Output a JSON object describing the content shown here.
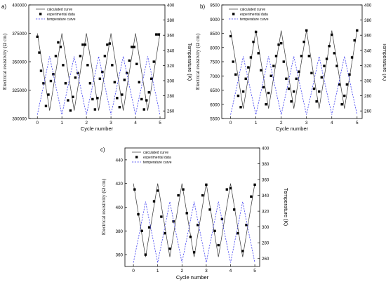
{
  "panels": [
    {
      "panel_label": "a)",
      "x_axis_label": "Cycle number",
      "y_left_label": "Electrical resistivity (Ω cm)",
      "y_right_label": "Temperature (K)",
      "legend": [
        "calculated curve",
        "experimental data",
        "temperature curve"
      ]
    },
    {
      "panel_label": "b)",
      "x_axis_label": "Cycle number",
      "y_left_label": "Electrical resistivity (Ω cm)",
      "y_right_label": "Temperature (K)",
      "legend": [
        "calculated curve",
        "experimental data",
        "temperature curve"
      ]
    },
    {
      "panel_label": "c)",
      "x_axis_label": "Cycle number",
      "y_left_label": "Electrical resistivity (Ω cm)",
      "y_right_label": "Temperature (K)",
      "legend": [
        "calculated curve",
        "experimental data",
        "temperature curve"
      ]
    }
  ],
  "chart_data": [
    {
      "type": "line",
      "title": "",
      "xlabel": "Cycle number",
      "ylabel": "Electrical resistivity (Ω cm)",
      "y2label": "Temperature (K)",
      "xlim": [
        -0.35,
        5.2
      ],
      "ylim": [
        300000,
        400000
      ],
      "y2lim": [
        250,
        400
      ],
      "xticks": [
        0,
        1,
        2,
        3,
        4,
        5
      ],
      "yticks": [
        300000,
        325000,
        350000,
        375000,
        400000
      ],
      "y2ticks": [
        260,
        280,
        300,
        320,
        340,
        360,
        380,
        400
      ],
      "grid": false,
      "legend_position": "top-left",
      "series": [
        {
          "name": "calculated curve",
          "axis": "left",
          "style": "line-solid",
          "color": "#404040",
          "x": [
            0,
            0.25,
            0.5,
            0.75,
            1,
            1.25,
            1.5,
            1.75,
            2,
            2.25,
            2.5,
            2.75,
            3,
            3.25,
            3.5,
            3.75,
            4,
            4.25,
            4.5,
            4.75,
            5
          ],
          "y": [
            375000,
            341000,
            307000,
            341000,
            375000,
            341000,
            307000,
            341000,
            375000,
            341000,
            307000,
            341000,
            375000,
            341000,
            307000,
            341000,
            375000,
            341000,
            307000,
            341000,
            375000
          ]
        },
        {
          "name": "experimental data",
          "axis": "left",
          "style": "square-markers",
          "color": "#000000",
          "x": [
            0,
            0.08,
            0.15,
            0.25,
            0.35,
            0.45,
            0.55,
            0.65,
            0.75,
            0.85,
            0.95,
            1.05,
            1.15,
            1.25,
            1.35,
            1.45,
            1.55,
            1.65,
            1.75,
            1.85,
            1.95,
            2.05,
            2.15,
            2.25,
            2.35,
            2.45,
            2.55,
            2.65,
            2.75,
            2.85,
            2.95,
            3.05,
            3.15,
            3.25,
            3.35,
            3.45,
            3.55,
            3.65,
            3.75,
            3.85,
            3.95,
            4.05,
            4.15,
            4.25,
            4.35,
            4.45,
            4.55,
            4.65,
            4.75,
            4.85,
            4.95
          ],
          "y": [
            372000,
            358000,
            342000,
            331000,
            311000,
            321000,
            333000,
            339000,
            355000,
            367000,
            363000,
            347000,
            331000,
            316000,
            307000,
            319000,
            336000,
            340000,
            355000,
            365000,
            365000,
            347000,
            331000,
            317000,
            308000,
            318000,
            335000,
            341000,
            355000,
            365000,
            366000,
            347000,
            332000,
            318000,
            310000,
            321000,
            334000,
            340000,
            351000,
            363000,
            363000,
            348000,
            332000,
            317000,
            308000,
            316000,
            323000,
            335000,
            350000,
            374000,
            374000
          ]
        },
        {
          "name": "temperature curve",
          "axis": "right",
          "style": "line-dashed",
          "color": "#3a3af0",
          "x": [
            0,
            0.25,
            0.5,
            0.75,
            1,
            1.25,
            1.5,
            1.75,
            2,
            2.25,
            2.5,
            2.75,
            3,
            3.25,
            3.5,
            3.75,
            4,
            4.25,
            4.5,
            4.75,
            5
          ],
          "y": [
            255,
            293,
            332,
            293,
            255,
            293,
            332,
            293,
            255,
            293,
            332,
            293,
            255,
            293,
            332,
            293,
            255,
            293,
            332,
            293,
            255
          ]
        }
      ]
    },
    {
      "type": "line",
      "title": "",
      "xlabel": "Cycle number",
      "ylabel": "Electrical resistivity (Ω cm)",
      "y2label": "Temperature (K)",
      "xlim": [
        -0.35,
        5.2
      ],
      "ylim": [
        5500,
        9500
      ],
      "y2lim": [
        250,
        400
      ],
      "xticks": [
        0,
        1,
        2,
        3,
        4,
        5
      ],
      "yticks": [
        5500,
        6000,
        6500,
        7000,
        7500,
        8000,
        8500,
        9000,
        9500
      ],
      "y2ticks": [
        260,
        280,
        300,
        320,
        340,
        360,
        380,
        400
      ],
      "grid": false,
      "legend_position": "top-left",
      "series": [
        {
          "name": "calculated curve",
          "axis": "left",
          "style": "line-solid",
          "color": "#404040",
          "x": [
            0,
            0.25,
            0.5,
            0.75,
            1,
            1.25,
            1.5,
            1.75,
            2,
            2.25,
            2.5,
            2.75,
            3,
            3.25,
            3.5,
            3.75,
            4,
            4.25,
            4.5,
            4.75,
            5
          ],
          "y": [
            8600,
            7225,
            5850,
            7225,
            8600,
            7225,
            5850,
            7225,
            8600,
            7225,
            5850,
            7225,
            8600,
            7225,
            5850,
            7225,
            8600,
            7225,
            5850,
            7225,
            8600
          ]
        },
        {
          "name": "experimental data",
          "axis": "left",
          "style": "square-markers",
          "color": "#000000",
          "x": [
            0,
            0.1,
            0.2,
            0.3,
            0.4,
            0.5,
            0.6,
            0.7,
            0.8,
            0.9,
            1.0,
            1.1,
            1.2,
            1.3,
            1.4,
            1.5,
            1.6,
            1.7,
            1.8,
            1.9,
            2.0,
            2.1,
            2.2,
            2.3,
            2.4,
            2.5,
            2.6,
            2.7,
            2.8,
            2.9,
            3.0,
            3.1,
            3.2,
            3.3,
            3.4,
            3.5,
            3.6,
            3.7,
            3.8,
            3.9,
            4.0,
            4.1,
            4.2,
            4.3,
            4.4,
            4.5,
            4.6,
            4.7,
            4.8,
            4.9,
            5.0
          ],
          "y": [
            8400,
            7500,
            7050,
            6300,
            5900,
            6450,
            6900,
            7300,
            7650,
            8200,
            8550,
            7800,
            7200,
            6600,
            6000,
            6400,
            7000,
            7350,
            7700,
            8100,
            8150,
            7500,
            6900,
            6550,
            6100,
            6450,
            6900,
            7150,
            7700,
            8200,
            8600,
            7700,
            7100,
            6550,
            6100,
            6450,
            6950,
            7350,
            7600,
            8050,
            8450,
            7800,
            7350,
            6700,
            6000,
            6300,
            6700,
            7050,
            7650,
            8250,
            8600
          ]
        },
        {
          "name": "temperature curve",
          "axis": "right",
          "style": "line-dashed",
          "color": "#3a3af0",
          "x": [
            0,
            0.25,
            0.5,
            0.75,
            1,
            1.25,
            1.5,
            1.75,
            2,
            2.25,
            2.5,
            2.75,
            3,
            3.25,
            3.5,
            3.75,
            4,
            4.25,
            4.5,
            4.75,
            5
          ],
          "y": [
            255,
            293,
            332,
            293,
            255,
            293,
            332,
            293,
            255,
            293,
            332,
            293,
            255,
            293,
            332,
            293,
            255,
            293,
            332,
            293,
            255
          ]
        }
      ]
    },
    {
      "type": "line",
      "title": "",
      "xlabel": "Cycle number",
      "ylabel": "Electrical resistivity (Ω cm)",
      "y2label": "Temperature (K)",
      "xlim": [
        -0.35,
        5.2
      ],
      "ylim": [
        350,
        450
      ],
      "y2lim": [
        250,
        400
      ],
      "xticks": [
        0,
        1,
        2,
        3,
        4,
        5
      ],
      "yticks": [
        360,
        380,
        400,
        420,
        440
      ],
      "y2ticks": [
        260,
        280,
        300,
        320,
        340,
        360,
        380,
        400
      ],
      "grid": false,
      "legend_position": "top-left",
      "series": [
        {
          "name": "calculated curve",
          "axis": "left",
          "style": "line-solid",
          "color": "#404040",
          "x": [
            0,
            0.25,
            0.5,
            0.75,
            1,
            1.25,
            1.5,
            1.75,
            2,
            2.25,
            2.5,
            2.75,
            3,
            3.25,
            3.5,
            3.75,
            4,
            4.25,
            4.5,
            4.75,
            5
          ],
          "y": [
            420,
            389,
            358,
            389,
            420,
            389,
            358,
            389,
            420,
            389,
            358,
            389,
            420,
            389,
            358,
            389,
            420,
            389,
            358,
            389,
            420
          ]
        },
        {
          "name": "experimental data",
          "axis": "left",
          "style": "square-markers",
          "color": "#000000",
          "x": [
            0.05,
            0.2,
            0.35,
            0.5,
            0.65,
            0.85,
            1.0,
            1.15,
            1.3,
            1.5,
            1.65,
            1.85,
            2.05,
            2.2,
            2.35,
            2.5,
            2.65,
            2.85,
            3.0,
            3.15,
            3.35,
            3.5,
            3.65,
            3.85,
            4.0,
            4.15,
            4.3,
            4.5,
            4.65,
            4.85,
            5.0
          ],
          "y": [
            415,
            394,
            380,
            360,
            383,
            405,
            414,
            392,
            378,
            365,
            388,
            410,
            415,
            395,
            375,
            362,
            385,
            410,
            419,
            398,
            380,
            368,
            390,
            415,
            416,
            398,
            378,
            363,
            385,
            409,
            419
          ]
        },
        {
          "name": "temperature curve",
          "axis": "right",
          "style": "line-dashed",
          "color": "#3a3af0",
          "x": [
            0,
            0.25,
            0.5,
            0.75,
            1,
            1.25,
            1.5,
            1.75,
            2,
            2.25,
            2.5,
            2.75,
            3,
            3.25,
            3.5,
            3.75,
            4,
            4.25,
            4.5,
            4.75,
            5
          ],
          "y": [
            255,
            293,
            332,
            293,
            255,
            293,
            332,
            293,
            255,
            293,
            332,
            293,
            255,
            293,
            332,
            293,
            255,
            293,
            332,
            293,
            255
          ]
        }
      ]
    }
  ]
}
